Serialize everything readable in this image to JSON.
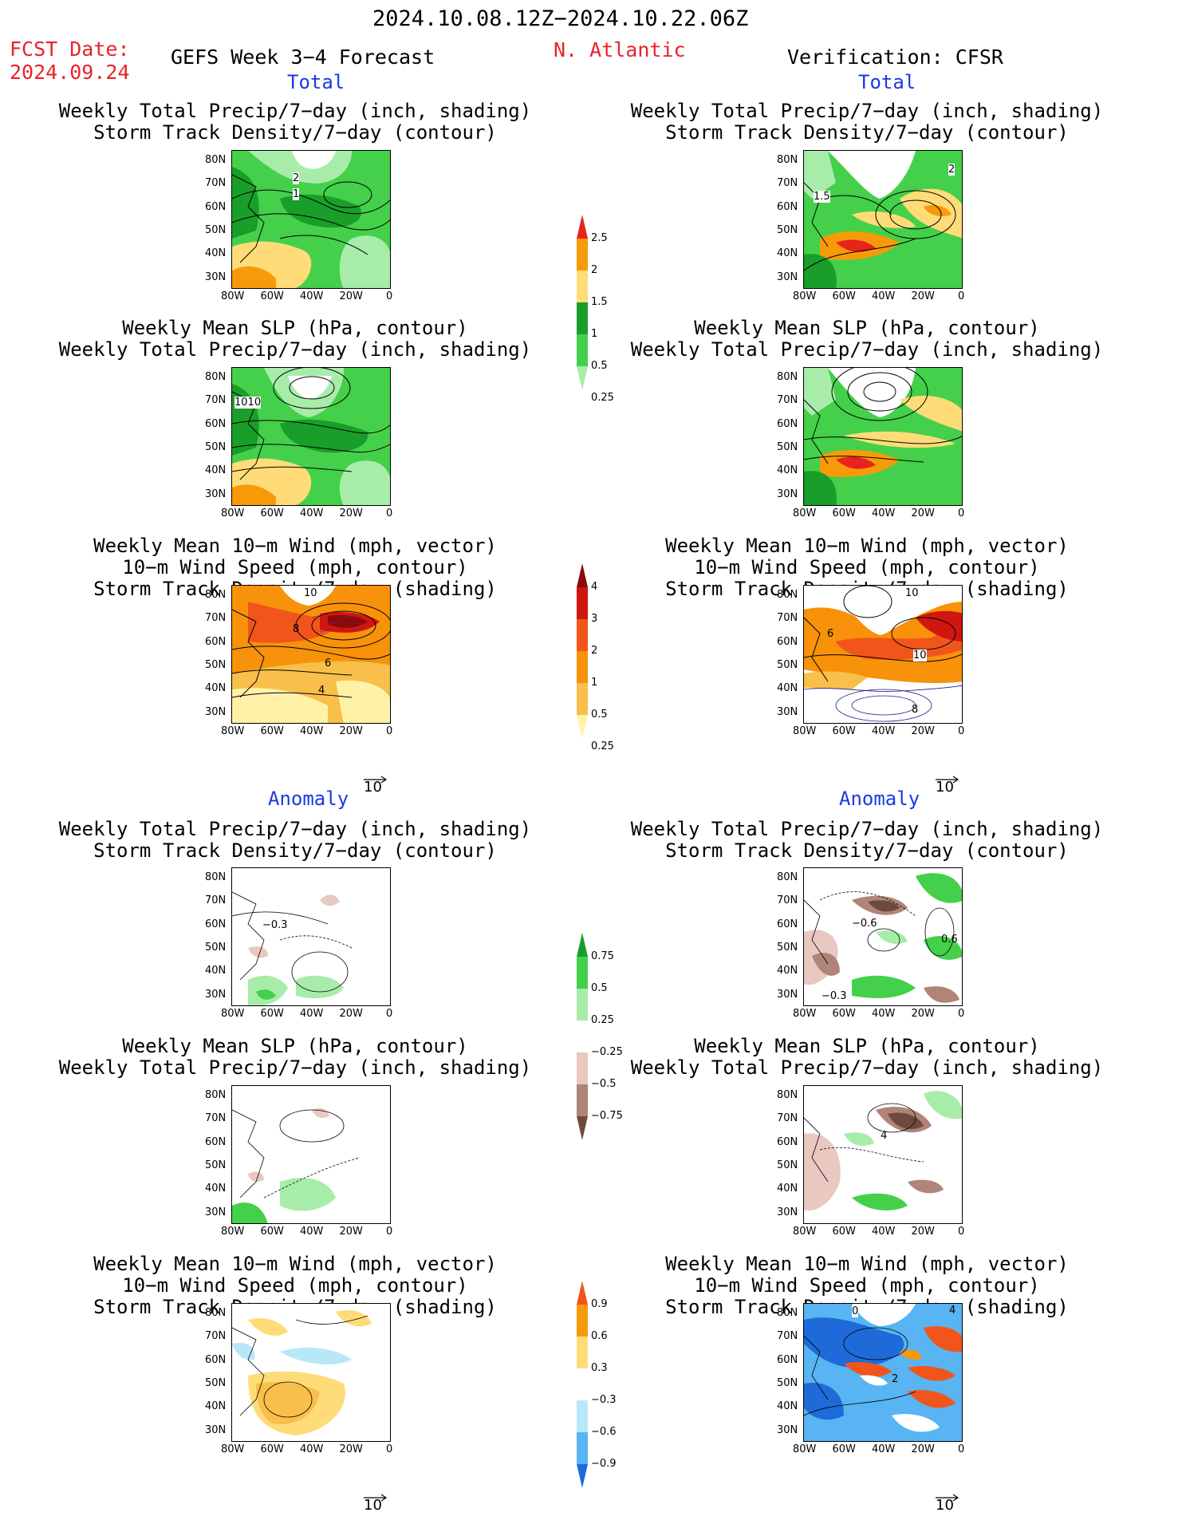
{
  "header": {
    "period": "2024.10.08.12Z−2024.10.22.06Z",
    "fcst_label": "FCST Date:",
    "fcst_date": "2024.09.24",
    "model": "GEFS Week 3−4 Forecast",
    "region": "N. Atlantic",
    "verification": "Verification: CFSR"
  },
  "sections": {
    "total": "Total",
    "anomaly": "Anomaly"
  },
  "panel_titles": {
    "precip_storm": "Weekly Total Precip/7−day (inch, shading)\nStorm Track Density/7−day (contour)",
    "slp_precip": "Weekly Mean SLP (hPa, contour)\nWeekly Total Precip/7−day (inch, shading)",
    "wind": "Weekly Mean 10−m Wind (mph, vector)\n10−m Wind Speed (mph, contour)\nStorm Track Density/7−day (shading)"
  },
  "axes": {
    "lat": [
      "80N",
      "70N",
      "60N",
      "50N",
      "40N",
      "30N"
    ],
    "lon": [
      "80W",
      "60W",
      "40W",
      "20W",
      "0"
    ]
  },
  "vector_ref": "10",
  "colorbars": {
    "precip_total": {
      "labels": [
        "2.5",
        "2",
        "1.5",
        "1",
        "0.5",
        "0.25"
      ],
      "colors": [
        "#e8231b",
        "#f79a0a",
        "#ffdc78",
        "#1a9e2a",
        "#44d04a",
        "#a8ecaa"
      ]
    },
    "storm_total": {
      "labels": [
        "4",
        "3",
        "2",
        "1",
        "0.5",
        "0.25"
      ],
      "colors": [
        "#8b0a0a",
        "#d0170f",
        "#f2551b",
        "#f7920a",
        "#f8bf4a",
        "#fff2a8"
      ]
    },
    "precip_anom": {
      "labels": [
        "0.75",
        "0.5",
        "0.25",
        "−0.25",
        "−0.5",
        "−0.75"
      ],
      "colors": [
        "#1a9e2a",
        "#44d04a",
        "#a8ecaa",
        "#ffffff",
        "#e8c8c0",
        "#b08478",
        "#6e4a3e"
      ]
    },
    "storm_anom": {
      "labels": [
        "0.9",
        "0.6",
        "0.3",
        "−0.3",
        "−0.6",
        "−0.9"
      ],
      "colors": [
        "#f2551b",
        "#f79a0a",
        "#ffdc78",
        "#ffffff",
        "#b8e8f8",
        "#58b4f2",
        "#1e6ad8"
      ]
    }
  },
  "contour_labels": {
    "fcst_precip_storm": [
      "2",
      "1"
    ],
    "obs_precip_storm": [
      "2",
      "1.5"
    ],
    "fcst_slp": [
      "1010"
    ],
    "fcst_wind": [
      "10",
      "8",
      "6",
      "4"
    ],
    "obs_wind": [
      "10",
      "6",
      "10",
      "8"
    ],
    "fcst_precip_anom": [
      "−0.3"
    ],
    "obs_precip_anom": [
      "−0.6",
      "0.6",
      "−0.3"
    ],
    "obs_slp_anom": [
      "4"
    ],
    "obs_wind_anom": [
      "0",
      "4",
      "2"
    ]
  }
}
